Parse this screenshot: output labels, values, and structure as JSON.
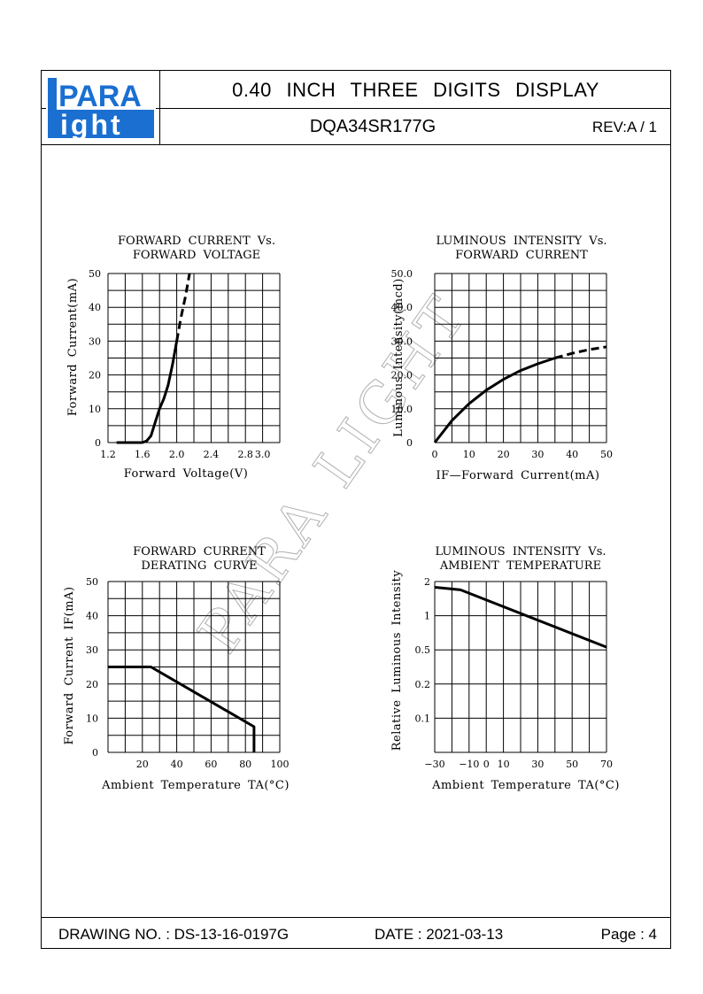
{
  "header": {
    "logo_top": "PARA",
    "logo_bottom": "ight",
    "title": "0.40 INCH THREE DIGITS DISPLAY",
    "part_number": "DQA34SR177G",
    "revision": "REV:A / 1"
  },
  "watermark": "PARA LIGHT",
  "footer": {
    "drawing_no": "DRAWING NO. : DS-13-16-0197G",
    "date": "DATE : 2021-03-13",
    "page": "Page : 4"
  },
  "chart_data": [
    {
      "type": "line",
      "title": [
        "FORWARD CURRENT Vs.",
        "FORWARD VOLTAGE"
      ],
      "xlabel": "Forward Voltage(V)",
      "ylabel": "Forward Current(mA)",
      "x_ticks": [
        "1.2",
        "1.6",
        "2.0",
        "2.4",
        "2.8",
        "3.0"
      ],
      "y_ticks": [
        "0",
        "10",
        "20",
        "30",
        "40",
        "50"
      ],
      "xlim": [
        1.2,
        3.2
      ],
      "ylim": [
        0,
        50
      ],
      "grid": true,
      "series": [
        {
          "style": "solid",
          "x": [
            1.3,
            1.6,
            1.65,
            1.7,
            1.75,
            1.8,
            1.85,
            1.9,
            1.95,
            2.0
          ],
          "y": [
            0,
            0,
            0.5,
            2,
            6,
            10,
            13,
            17,
            23,
            30
          ]
        },
        {
          "style": "dashed",
          "x": [
            2.0,
            2.05,
            2.1,
            2.15
          ],
          "y": [
            30,
            37,
            43,
            50
          ]
        }
      ]
    },
    {
      "type": "line",
      "title": [
        "LUMINOUS INTENSITY Vs.",
        "FORWARD CURRENT"
      ],
      "xlabel": "IF—Forward Current(mA)",
      "ylabel": "Luminous Intensity(mcd)",
      "x_ticks": [
        "0",
        "10",
        "20",
        "30",
        "40",
        "50"
      ],
      "y_ticks": [
        "0",
        "10.0",
        "20.0",
        "30.0",
        "40.0",
        "50.0"
      ],
      "xlim": [
        0,
        50
      ],
      "ylim": [
        0,
        50
      ],
      "grid": true,
      "series": [
        {
          "style": "solid",
          "x": [
            0,
            5,
            10,
            15,
            20,
            25,
            30,
            35
          ],
          "y": [
            0,
            6.5,
            11.5,
            15.5,
            18.7,
            21.3,
            23.3,
            25
          ]
        },
        {
          "style": "dashed",
          "x": [
            35,
            40,
            45,
            50
          ],
          "y": [
            25,
            26.4,
            27.5,
            28.3
          ]
        }
      ]
    },
    {
      "type": "line",
      "title": [
        "FORWARD CURRENT",
        "DERATING CURVE"
      ],
      "xlabel": "Ambient Temperature TA(°C)",
      "ylabel": "Forward Current IF(mA)",
      "x_ticks": [
        "20",
        "40",
        "60",
        "80",
        "100"
      ],
      "y_ticks": [
        "0",
        "10",
        "20",
        "30",
        "40",
        "50"
      ],
      "xlim": [
        0,
        100
      ],
      "ylim": [
        0,
        50
      ],
      "grid": true,
      "series": [
        {
          "style": "solid",
          "x": [
            0,
            25,
            85,
            85
          ],
          "y": [
            25,
            25,
            7.5,
            0
          ]
        }
      ]
    },
    {
      "type": "line",
      "title": [
        "LUMINOUS INTENSITY Vs.",
        "AMBIENT TEMPERATURE"
      ],
      "xlabel": "Ambient Temperature TA(°C)",
      "ylabel": "Relative Luminous Intensity",
      "x_ticks": [
        "−30",
        "−10",
        "0",
        "10",
        "30",
        "50",
        "70"
      ],
      "y_ticks": [
        "0.1",
        "0.2",
        "0.5",
        "1",
        "2"
      ],
      "xlim": [
        -30,
        70
      ],
      "ylim": [
        0.05,
        2.1
      ],
      "y_scale": "log",
      "grid": true,
      "series": [
        {
          "style": "solid",
          "x": [
            -30,
            -15,
            70
          ],
          "y": [
            1.85,
            1.75,
            0.5
          ]
        }
      ]
    }
  ]
}
